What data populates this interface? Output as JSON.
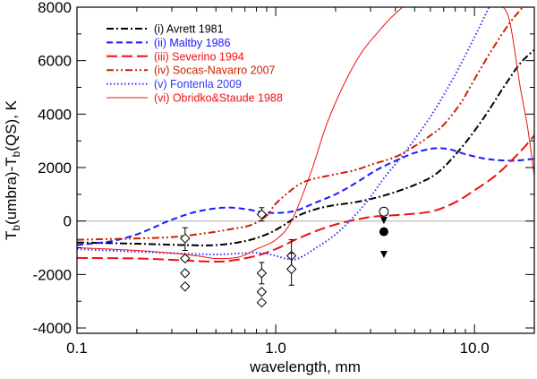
{
  "chart_data": {
    "type": "line",
    "xscale": "log",
    "xlim": [
      0.1,
      20
    ],
    "ylim": [
      -4200,
      8000
    ],
    "xlabel": "wavelength, mm",
    "ylabel_main": "T",
    "ylabel_sub1": "b",
    "ylabel_mid": "(umbra)-T",
    "ylabel_sub2": "b",
    "ylabel_tail": "(QS), K",
    "xticks": [
      {
        "value": 0.1,
        "label": "0.1"
      },
      {
        "value": 1.0,
        "label": "1.0"
      },
      {
        "value": 10.0,
        "label": "10.0"
      }
    ],
    "yticks": [
      {
        "value": -4000,
        "label": "-4000"
      },
      {
        "value": -2000,
        "label": "-2000"
      },
      {
        "value": 0,
        "label": "0"
      },
      {
        "value": 2000,
        "label": "2000"
      },
      {
        "value": 4000,
        "label": "4000"
      },
      {
        "value": 6000,
        "label": "6000"
      },
      {
        "value": 8000,
        "label": "8000"
      }
    ],
    "reference_line": 0,
    "series": [
      {
        "name": "(i) Avrett 1981",
        "color": "#000000",
        "dash": "dashdot",
        "points": [
          [
            0.1,
            -800
          ],
          [
            0.2,
            -850
          ],
          [
            0.35,
            -900
          ],
          [
            0.5,
            -900
          ],
          [
            0.7,
            -750
          ],
          [
            0.9,
            -500
          ],
          [
            1.1,
            -150
          ],
          [
            1.3,
            200
          ],
          [
            1.6,
            450
          ],
          [
            2.0,
            600
          ],
          [
            2.5,
            700
          ],
          [
            3.5,
            950
          ],
          [
            5.0,
            1350
          ],
          [
            6.5,
            1800
          ],
          [
            8.5,
            2700
          ],
          [
            11,
            3800
          ],
          [
            14,
            5000
          ],
          [
            17,
            5900
          ],
          [
            20,
            6400
          ]
        ]
      },
      {
        "name": "(ii) Maltby 1986",
        "color": "#1a1aff",
        "dash": "dash",
        "points": [
          [
            0.1,
            -900
          ],
          [
            0.15,
            -750
          ],
          [
            0.2,
            -500
          ],
          [
            0.25,
            -200
          ],
          [
            0.3,
            50
          ],
          [
            0.4,
            350
          ],
          [
            0.55,
            500
          ],
          [
            0.7,
            450
          ],
          [
            0.85,
            330
          ],
          [
            1.0,
            300
          ],
          [
            1.15,
            330
          ],
          [
            1.3,
            420
          ],
          [
            1.6,
            700
          ],
          [
            2.0,
            1000
          ],
          [
            2.5,
            1400
          ],
          [
            3.2,
            1900
          ],
          [
            4.0,
            2250
          ],
          [
            5.0,
            2550
          ],
          [
            6.3,
            2720
          ],
          [
            7.5,
            2680
          ],
          [
            9,
            2500
          ],
          [
            11,
            2350
          ],
          [
            13,
            2280
          ],
          [
            16,
            2260
          ],
          [
            20,
            2330
          ]
        ]
      },
      {
        "name": "(iii) Severino 1994",
        "color": "#ee1111",
        "dash": "longdash",
        "points": [
          [
            0.1,
            -1380
          ],
          [
            0.2,
            -1400
          ],
          [
            0.3,
            -1450
          ],
          [
            0.4,
            -1500
          ],
          [
            0.5,
            -1520
          ],
          [
            0.6,
            -1480
          ],
          [
            0.8,
            -1300
          ],
          [
            1.0,
            -1050
          ],
          [
            1.3,
            -650
          ],
          [
            1.7,
            -300
          ],
          [
            2.2,
            -50
          ],
          [
            3.0,
            150
          ],
          [
            4.0,
            220
          ],
          [
            6.0,
            350
          ],
          [
            8.0,
            700
          ],
          [
            10,
            1150
          ],
          [
            13,
            1750
          ],
          [
            17,
            2600
          ],
          [
            20,
            3200
          ]
        ]
      },
      {
        "name": "(iv) Socas-Navarro 2007",
        "color": "#cc2200",
        "dash": "dashdotdot",
        "points": [
          [
            0.1,
            -700
          ],
          [
            0.2,
            -650
          ],
          [
            0.3,
            -600
          ],
          [
            0.45,
            -450
          ],
          [
            0.6,
            -300
          ],
          [
            0.75,
            -150
          ],
          [
            0.9,
            200
          ],
          [
            1.0,
            650
          ],
          [
            1.15,
            1050
          ],
          [
            1.3,
            1350
          ],
          [
            1.5,
            1550
          ],
          [
            2.0,
            1750
          ],
          [
            2.5,
            1900
          ],
          [
            3.0,
            2100
          ],
          [
            4.0,
            2400
          ],
          [
            5.0,
            2800
          ],
          [
            6.0,
            3200
          ],
          [
            7.0,
            3600
          ],
          [
            8.5,
            4400
          ],
          [
            10,
            5300
          ],
          [
            12,
            6300
          ],
          [
            15,
            7400
          ],
          [
            18,
            8100
          ]
        ]
      },
      {
        "name": "(v) Fontenla 2009",
        "color": "#3333ff",
        "dash": "dot",
        "points": [
          [
            0.1,
            -1050
          ],
          [
            0.2,
            -1150
          ],
          [
            0.3,
            -1200
          ],
          [
            0.5,
            -1250
          ],
          [
            0.7,
            -1200
          ],
          [
            0.85,
            -1200
          ],
          [
            1.0,
            -1300
          ],
          [
            1.15,
            -1420
          ],
          [
            1.3,
            -1400
          ],
          [
            1.6,
            -1000
          ],
          [
            2.0,
            -500
          ],
          [
            2.5,
            200
          ],
          [
            3.0,
            900
          ],
          [
            3.5,
            1600
          ],
          [
            4.5,
            2600
          ],
          [
            6.0,
            3900
          ],
          [
            7.5,
            5100
          ],
          [
            9.0,
            6200
          ],
          [
            10.5,
            7200
          ],
          [
            12,
            8100
          ]
        ]
      },
      {
        "name": "(vi) Obridko&Staude 1988",
        "color": "#ee1111",
        "dash": "solid",
        "points": [
          [
            0.1,
            -1000
          ],
          [
            0.2,
            -1100
          ],
          [
            0.3,
            -1200
          ],
          [
            0.4,
            -1300
          ],
          [
            0.5,
            -1400
          ],
          [
            0.65,
            -1350
          ],
          [
            0.8,
            -1050
          ],
          [
            1.0,
            -700
          ],
          [
            1.2,
            0
          ],
          [
            1.5,
            1800
          ],
          [
            1.8,
            3600
          ],
          [
            2.2,
            5100
          ],
          [
            2.7,
            6300
          ],
          [
            3.3,
            7100
          ],
          [
            3.8,
            7600
          ],
          [
            4.5,
            8100
          ]
        ]
      },
      {
        "name": "(vi) Obridko&Staude 1988 (long-wavelength branch)",
        "color": "#ee1111",
        "dash": "solid",
        "legend": false,
        "points": [
          [
            13.5,
            8100
          ],
          [
            15,
            7500
          ],
          [
            17,
            5000
          ],
          [
            18.5,
            3500
          ],
          [
            20,
            1700
          ]
        ]
      }
    ],
    "observations": [
      {
        "x": 0.35,
        "y": -650,
        "err_low": -1100,
        "err_high": -250
      },
      {
        "x": 0.35,
        "y": -1400,
        "err_low": -1400,
        "err_high": -1400
      },
      {
        "x": 0.35,
        "y": -1950,
        "err_low": -1950,
        "err_high": -1950
      },
      {
        "x": 0.35,
        "y": -2450,
        "err_low": -2450,
        "err_high": -2450
      },
      {
        "x": 0.85,
        "y": 250,
        "err_low": 0,
        "err_high": 500
      },
      {
        "x": 0.85,
        "y": -1950,
        "err_low": -2350,
        "err_high": -1550
      },
      {
        "x": 0.85,
        "y": -2650,
        "err_low": -2650,
        "err_high": -2650
      },
      {
        "x": 0.85,
        "y": -3050,
        "err_low": -3050,
        "err_high": -3050
      },
      {
        "x": 1.2,
        "y": -1300,
        "err_low": -1850,
        "err_high": -700
      },
      {
        "x": 1.2,
        "y": -1800,
        "err_low": -2400,
        "err_high": -1200
      }
    ],
    "special_points": [
      {
        "x": 3.5,
        "y": 350,
        "marker": "open-circle"
      },
      {
        "x": 3.5,
        "y": 20,
        "marker": "down-triangle"
      },
      {
        "x": 3.5,
        "y": -400,
        "marker": "filled-circle"
      },
      {
        "x": 3.5,
        "y": -1250,
        "marker": "down-triangle"
      }
    ]
  }
}
